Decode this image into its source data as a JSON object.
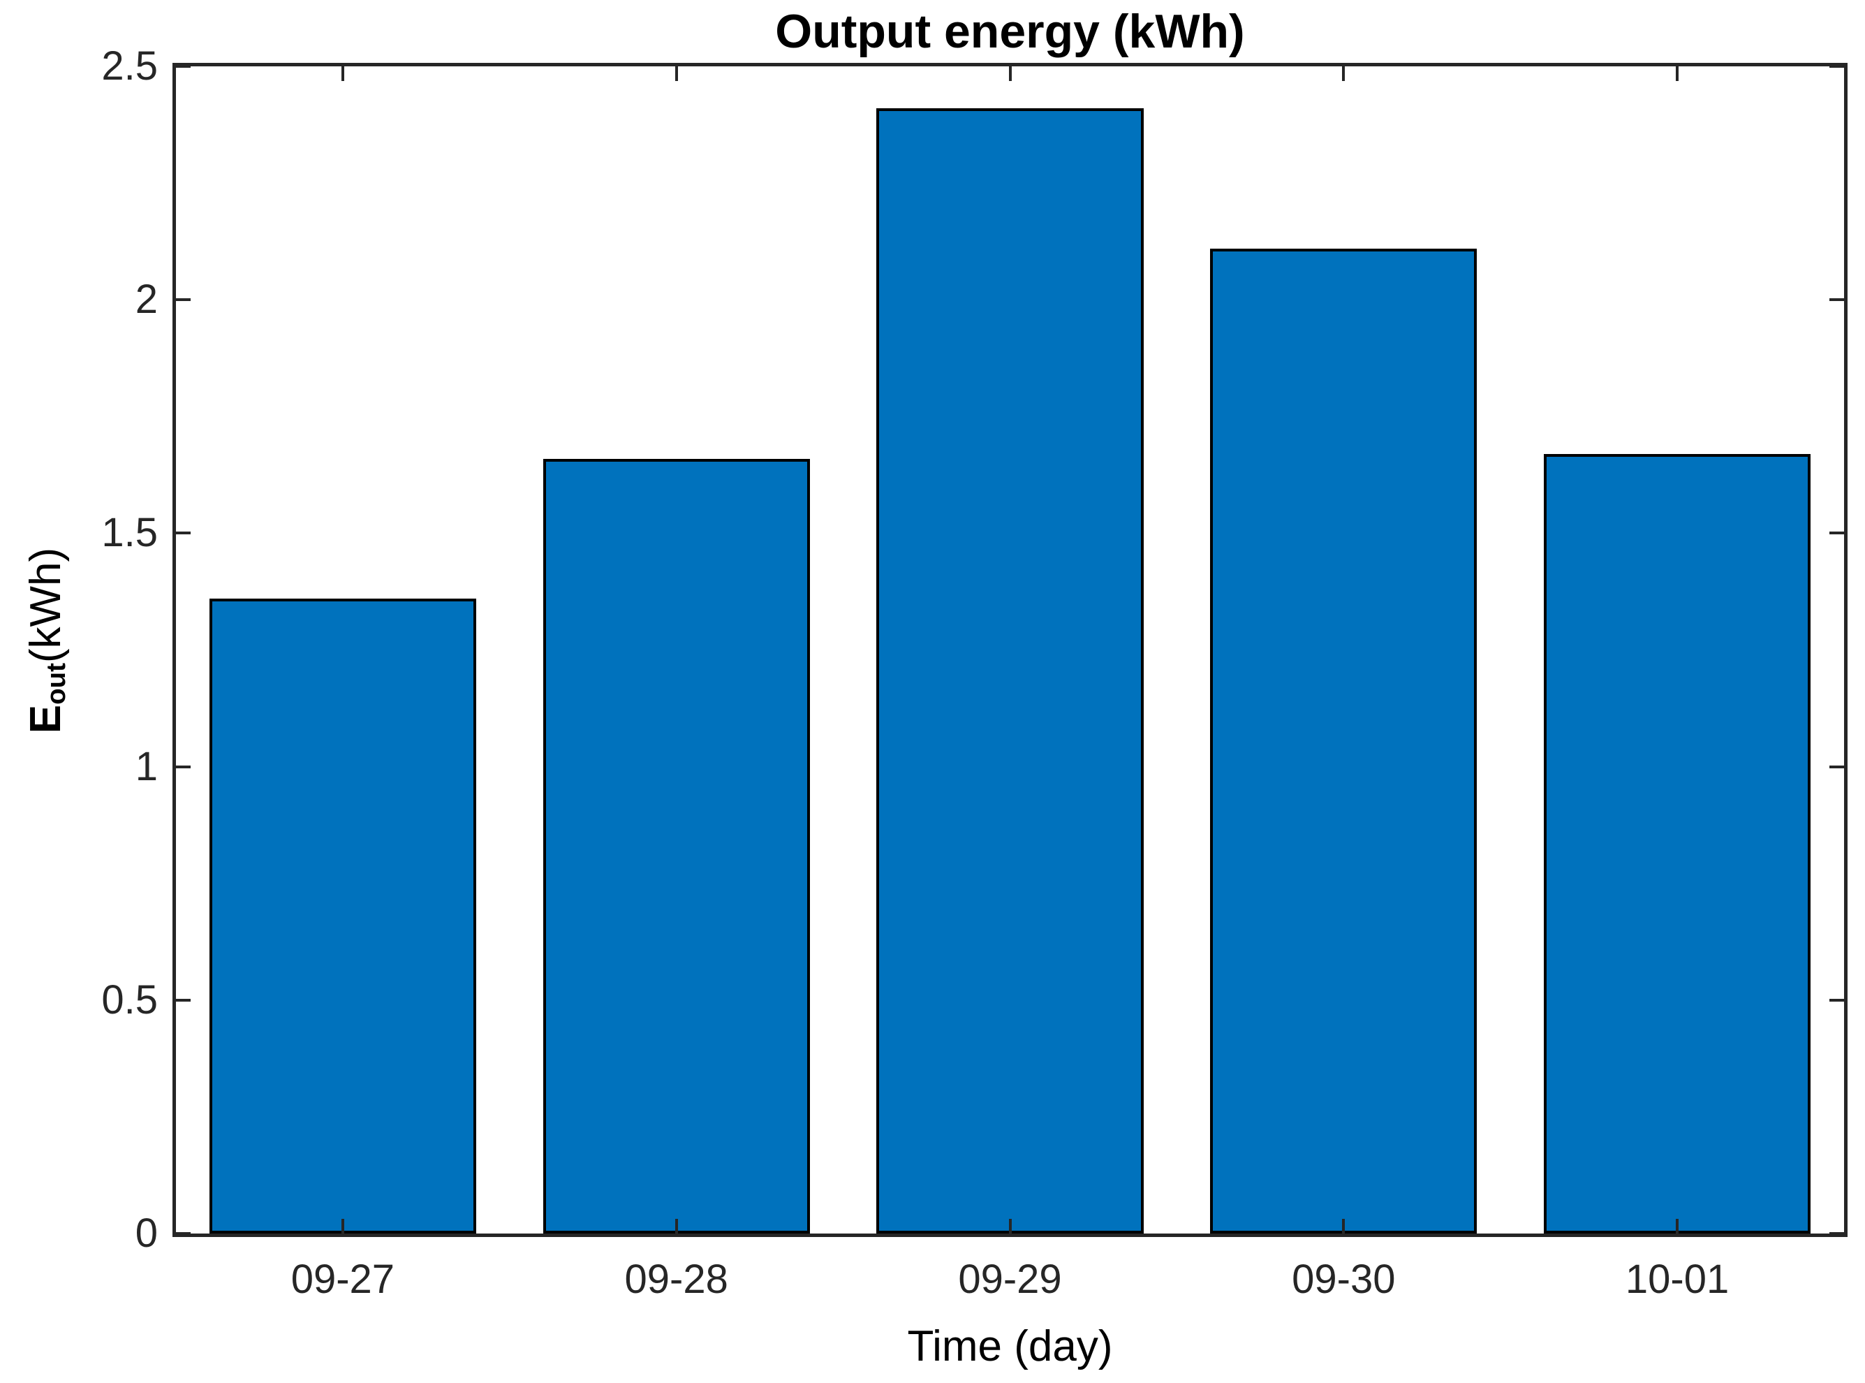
{
  "chart_data": {
    "type": "bar",
    "title": "Output energy (kWh)",
    "categories": [
      "09-27",
      "09-28",
      "09-29",
      "09-30",
      "10-01"
    ],
    "values": [
      1.36,
      1.66,
      2.41,
      2.11,
      1.67
    ],
    "xlabel": "Time (day)",
    "ylabel": "E_out(kWh)",
    "ylabel_parts": {
      "symbol": "E",
      "subscript": "out",
      "unit": "(kWh)"
    },
    "ylim": [
      0,
      2.5
    ],
    "yticks": [
      0,
      0.5,
      1,
      1.5,
      2,
      2.5
    ],
    "ytick_labels": [
      "0",
      "0.5",
      "1",
      "1.5",
      "2",
      "2.5"
    ],
    "bar_width_fraction": 0.8,
    "grid": false,
    "box": true,
    "tick_direction": "in",
    "legend": "none",
    "colors": {
      "bar_fill": "#0072BD",
      "bar_edge": "#000000",
      "axis": "#262626",
      "tick_text": "#262626",
      "label_text": "#000000",
      "background": "#FFFFFF"
    }
  }
}
